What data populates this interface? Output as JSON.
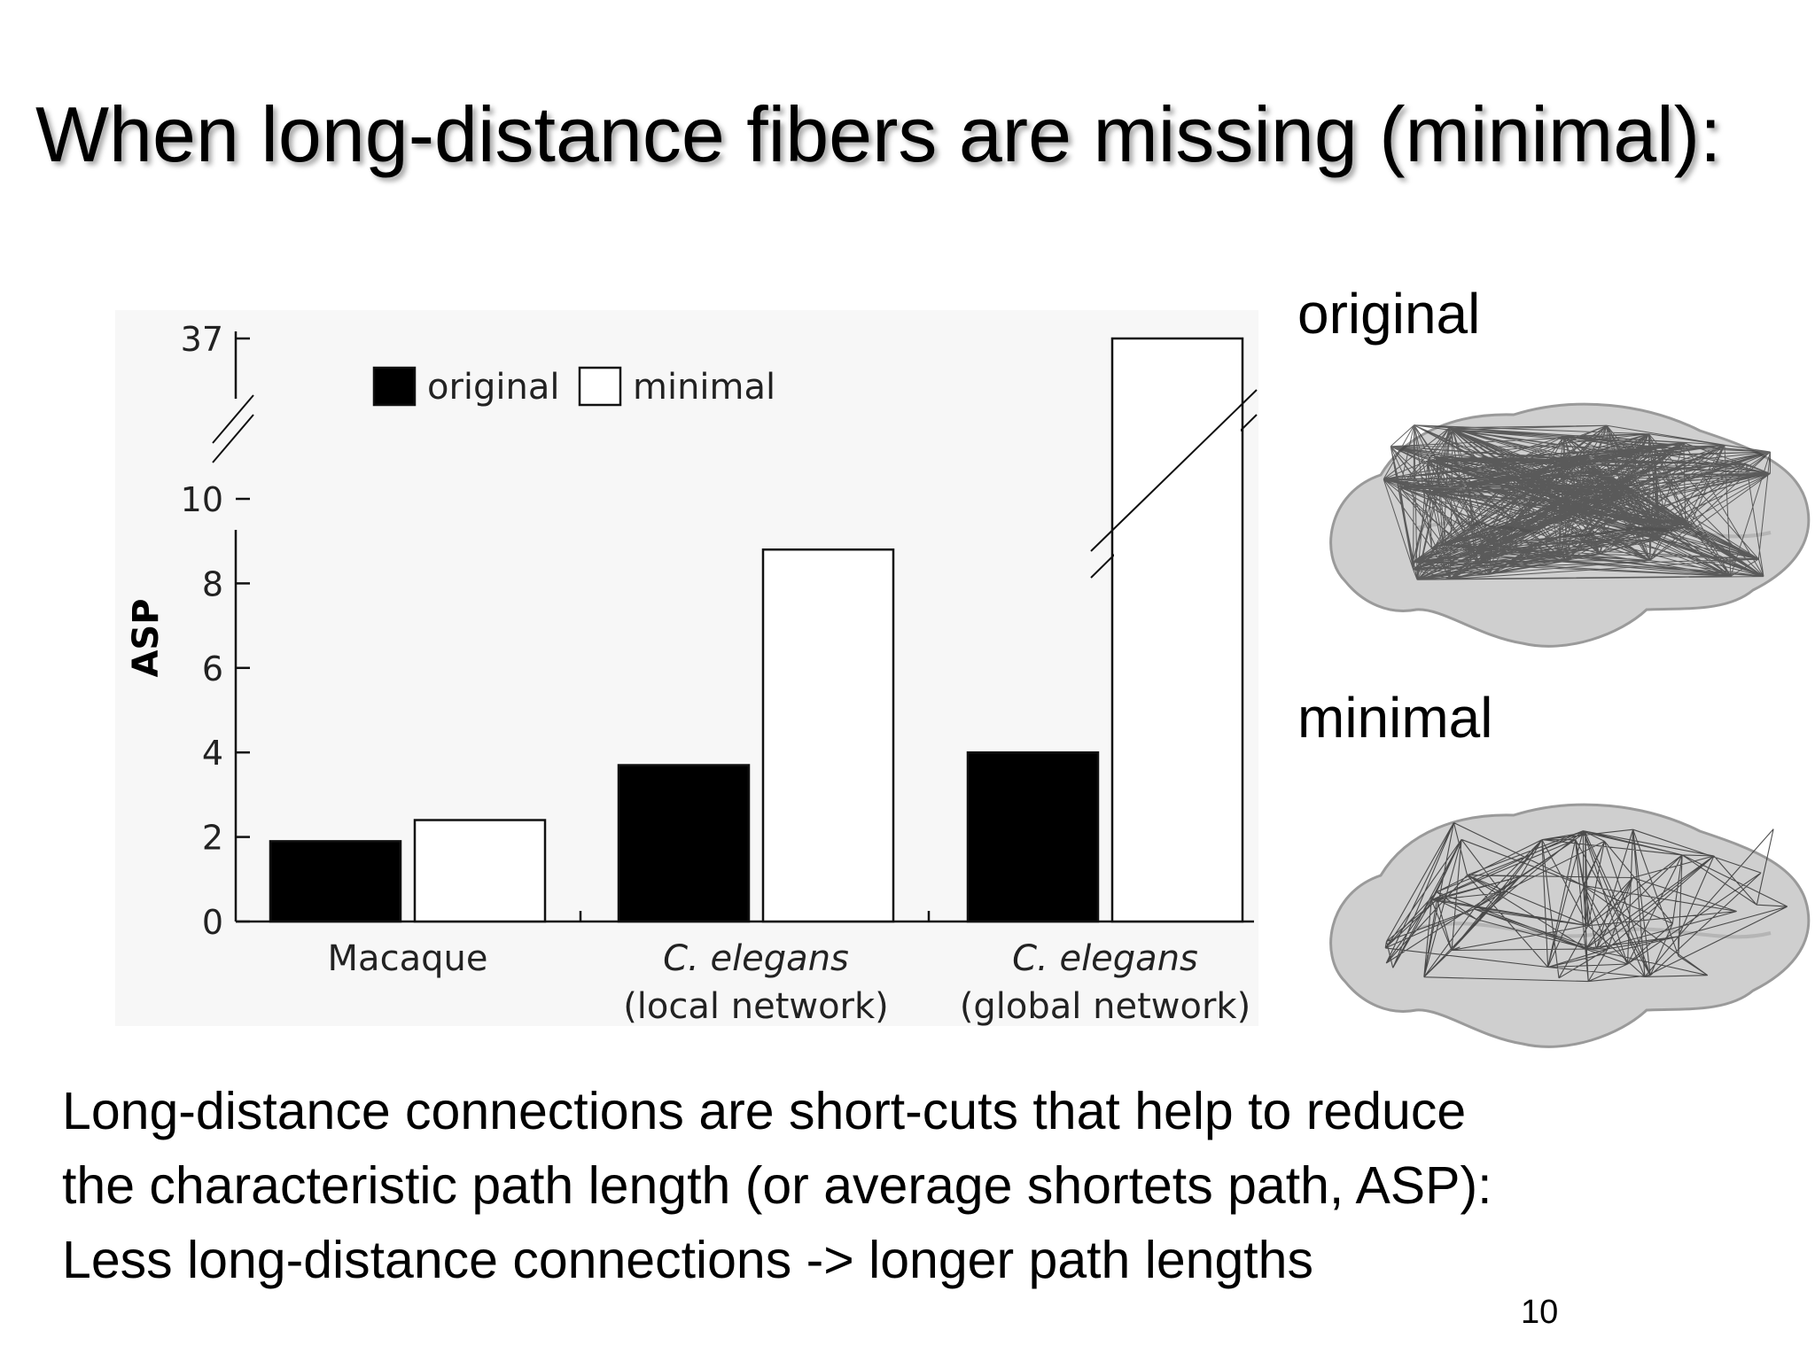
{
  "slide": {
    "title": "When long-distance fibers are missing (minimal):",
    "body_lines": [
      "Long-distance connections are short-cuts that help to reduce",
      "the characteristic path length (or average shortets path, ASP):",
      "Less long-distance connections -> longer path lengths"
    ],
    "page_number": "10"
  },
  "brain_panels": [
    {
      "label": "original",
      "density": "dense"
    },
    {
      "label": "minimal",
      "density": "sparse"
    }
  ],
  "colors": {
    "bar_original": "#000000",
    "bar_minimal": "#ffffff",
    "brain_fill": "#cfcfcf",
    "network_lines": "#333333",
    "chart_background": "#f7f7f7"
  },
  "chart_data": {
    "type": "bar",
    "categories": [
      {
        "line1": "Macaque",
        "line2": "",
        "italic_line1": false
      },
      {
        "line1": "C. elegans",
        "line2": "(local network)",
        "italic_line1": true
      },
      {
        "line1": "C. elegans",
        "line2": "(global network)",
        "italic_line1": true
      }
    ],
    "series": [
      {
        "name": "original",
        "values": [
          1.9,
          3.7,
          4.0
        ],
        "color": "#000000"
      },
      {
        "name": "minimal",
        "values": [
          2.4,
          8.8,
          37
        ],
        "color": "#ffffff"
      }
    ],
    "ylabel": "ASP",
    "yticks": [
      "0",
      "2",
      "4",
      "6",
      "8",
      "10",
      "37"
    ],
    "ylim": [
      0,
      37
    ],
    "axis_break": {
      "from": 10,
      "to": 37
    },
    "legend_position": "top-left",
    "grid": false
  }
}
